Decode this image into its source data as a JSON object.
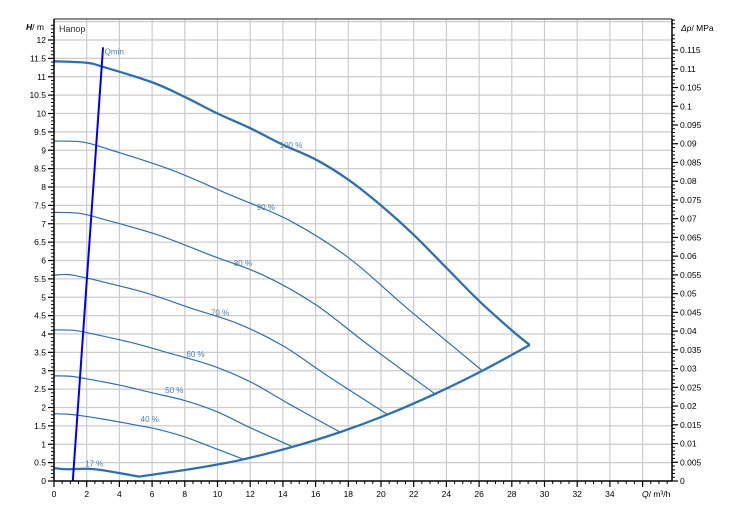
{
  "chart_data": {
    "type": "line",
    "title": "Напор",
    "xlabel_symbol": "Q",
    "xlabel_unit": "/ m³/h",
    "ylabel_symbol": "H",
    "ylabel_unit": "/ m",
    "y2label_symbol": "Δp",
    "y2label_unit": "/ MPa",
    "xlim": [
      0,
      37.8
    ],
    "ylim": [
      0,
      12.55
    ],
    "x_ticks": [
      0,
      2,
      4,
      6,
      8,
      10,
      12,
      14,
      16,
      18,
      20,
      22,
      24,
      26,
      28,
      30,
      32,
      34
    ],
    "x_tick_labels": [
      "0",
      "2",
      "4",
      "6",
      "8",
      "10",
      "12",
      "14",
      "16",
      "18",
      "20",
      "22",
      "24",
      "26",
      "28",
      "30",
      "32",
      "34"
    ],
    "y_ticks": [
      "0",
      "0.5",
      "1",
      "1.5",
      "2",
      "2.5",
      "3",
      "3.5",
      "4",
      "4.5",
      "5",
      "5.5",
      "6",
      "6.5",
      "7",
      "7.5",
      "8",
      "8.5",
      "9",
      "9.5",
      "10",
      "10.5",
      "11",
      "11.5",
      "12"
    ],
    "y2_ticks": [
      "0",
      "0.005",
      "0.01",
      "0.015",
      "0.02",
      "0.025",
      "0.03",
      "0.035",
      "0.04",
      "0.045",
      "0.05",
      "0.055",
      "0.06",
      "0.065",
      "0.07",
      "0.075",
      "0.08",
      "0.085",
      "0.09",
      "0.095",
      "0.1",
      "0.105",
      "0.11",
      "0.115"
    ],
    "y2_m_per_mpa": 101.97,
    "grid": true,
    "colors": {
      "curve": "#2f6fad",
      "qmin": "#0000ee",
      "label": "#4a7fb5",
      "grid": "#cccccc",
      "axis": "#000000"
    },
    "series": [
      {
        "name": "100 %",
        "label_at": [
          13.8,
          9.06
        ],
        "thick": true,
        "points": [
          [
            0,
            11.42
          ],
          [
            2,
            11.38
          ],
          [
            3,
            11.27
          ],
          [
            6,
            10.85
          ],
          [
            8,
            10.45
          ],
          [
            10,
            10.0
          ],
          [
            12,
            9.6
          ],
          [
            14,
            9.15
          ],
          [
            16,
            8.75
          ],
          [
            18,
            8.2
          ],
          [
            20,
            7.5
          ],
          [
            22,
            6.7
          ],
          [
            24,
            5.8
          ],
          [
            26,
            4.9
          ],
          [
            28,
            4.1
          ],
          [
            29.1,
            3.7
          ]
        ]
      },
      {
        "name": "90 %",
        "label_at": [
          12.4,
          7.37
        ],
        "points": [
          [
            0,
            9.25
          ],
          [
            1.8,
            9.22
          ],
          [
            3.6,
            8.99
          ],
          [
            7.2,
            8.46
          ],
          [
            10.8,
            7.78
          ],
          [
            14.4,
            7.09
          ],
          [
            18,
            6.08
          ],
          [
            21.6,
            4.7
          ],
          [
            26.2,
            3.0
          ]
        ]
      },
      {
        "name": "80 %",
        "label_at": [
          11.0,
          5.85
        ],
        "points": [
          [
            0,
            7.31
          ],
          [
            1.6,
            7.28
          ],
          [
            3.2,
            7.1
          ],
          [
            6.4,
            6.69
          ],
          [
            9.6,
            6.14
          ],
          [
            12.8,
            5.6
          ],
          [
            16,
            4.8
          ],
          [
            19.2,
            3.71
          ],
          [
            23.3,
            2.37
          ]
        ]
      },
      {
        "name": "70 %",
        "label_at": [
          9.6,
          4.5
        ],
        "points": [
          [
            0,
            5.6
          ],
          [
            0.8,
            5.62
          ],
          [
            1.4,
            5.58
          ],
          [
            2.8,
            5.44
          ],
          [
            5.6,
            5.12
          ],
          [
            8.4,
            4.7
          ],
          [
            11.2,
            4.29
          ],
          [
            14,
            3.68
          ],
          [
            16.8,
            2.84
          ],
          [
            20.4,
            1.81
          ]
        ]
      },
      {
        "name": "60 %",
        "label_at": [
          8.1,
          3.37
        ],
        "points": [
          [
            0,
            4.11
          ],
          [
            1.2,
            4.1
          ],
          [
            2.4,
            4.0
          ],
          [
            4.8,
            3.76
          ],
          [
            7.2,
            3.46
          ],
          [
            9.6,
            3.15
          ],
          [
            12,
            2.7
          ],
          [
            14.4,
            2.09
          ],
          [
            17.5,
            1.33
          ]
        ]
      },
      {
        "name": "50 %",
        "label_at": [
          6.8,
          2.4
        ],
        "points": [
          [
            0,
            2.86
          ],
          [
            1,
            2.85
          ],
          [
            2,
            2.78
          ],
          [
            4,
            2.61
          ],
          [
            6,
            2.4
          ],
          [
            8,
            2.19
          ],
          [
            10,
            1.88
          ],
          [
            12,
            1.45
          ],
          [
            14.6,
            0.93
          ]
        ]
      },
      {
        "name": "40 %",
        "label_at": [
          5.3,
          1.6
        ],
        "points": [
          [
            0,
            1.83
          ],
          [
            0.8,
            1.82
          ],
          [
            1.6,
            1.78
          ],
          [
            3.2,
            1.67
          ],
          [
            4.8,
            1.54
          ],
          [
            6.4,
            1.4
          ],
          [
            8,
            1.2
          ],
          [
            9.6,
            0.93
          ],
          [
            11.6,
            0.59
          ]
        ]
      },
      {
        "name": "17 %",
        "label_at": [
          1.9,
          0.4
        ],
        "thick": true,
        "points": [
          [
            0,
            0.35
          ],
          [
            0.8,
            0.32
          ],
          [
            2.5,
            0.32
          ],
          [
            5.2,
            0.12
          ]
        ]
      },
      {
        "name": "",
        "thick": true,
        "points": [
          [
            5.2,
            0.12
          ],
          [
            8,
            0.3
          ],
          [
            10,
            0.45
          ],
          [
            11.6,
            0.59
          ],
          [
            14.6,
            0.93
          ],
          [
            17.5,
            1.33
          ],
          [
            20.4,
            1.81
          ],
          [
            23.3,
            2.37
          ],
          [
            26.2,
            3.0
          ],
          [
            29.1,
            3.7
          ]
        ]
      }
    ],
    "qmin": {
      "name": "Qmin",
      "label_at": [
        3.1,
        11.6
      ],
      "points": [
        [
          1.15,
          0
        ],
        [
          3.0,
          11.8
        ]
      ]
    }
  }
}
